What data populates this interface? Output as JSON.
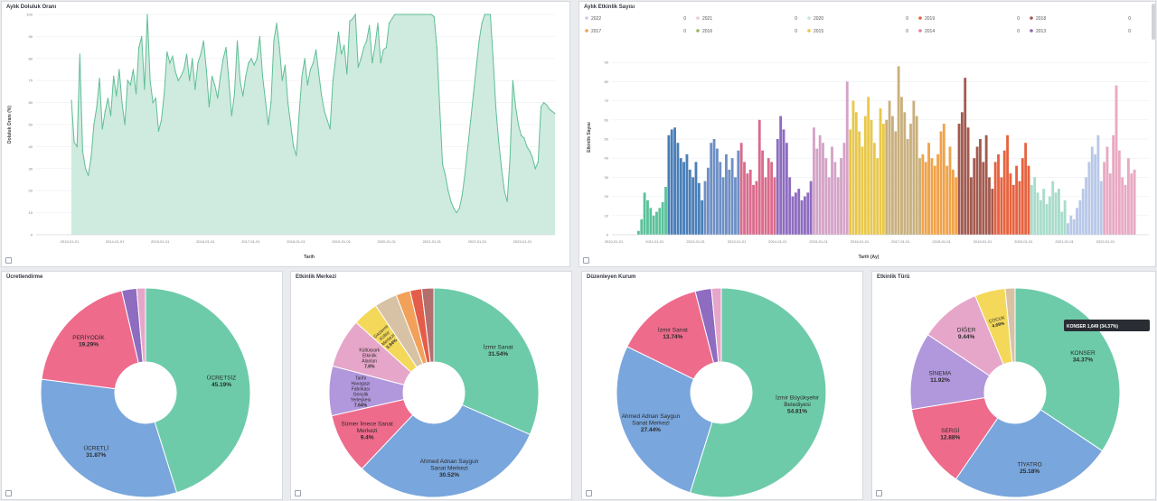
{
  "panels": {
    "occupancy": {
      "title": "Aylık Doluluk Oranı"
    },
    "events": {
      "title": "Aylık Etkinlik Sayısı"
    },
    "pricing": {
      "title": "Ücretlendirme"
    },
    "center": {
      "title": "Etkinlik Merkezi"
    },
    "organizer": {
      "title": "Düzenleyen Kurum"
    },
    "type": {
      "title": "Etkinlik Türü"
    }
  },
  "chart_data": [
    {
      "type": "area",
      "title": "Aylık Doluluk Oranı",
      "xlabel": "Tarih",
      "ylabel": "Doluluk Oranı (%)",
      "ylim": [
        0,
        100
      ],
      "yticks": [
        0,
        10,
        20,
        30,
        40,
        50,
        60,
        70,
        80,
        90,
        100
      ],
      "x_ticks": [
        "2013-01-01",
        "2014-01-01",
        "2015-01-01",
        "2016-01-01",
        "2017-01-01",
        "2018-01-01",
        "2019-01-01",
        "2020-01-01",
        "2021-01-01",
        "2022-01-01",
        "2023-01-01"
      ],
      "values": [
        61,
        42,
        40,
        82,
        38,
        30,
        27,
        35,
        50,
        58,
        71,
        48,
        56,
        62,
        54,
        72,
        63,
        75,
        60,
        50,
        70,
        68,
        75,
        64,
        85,
        90,
        66,
        100,
        70,
        60,
        62,
        47,
        52,
        64,
        83,
        78,
        81,
        74,
        70,
        72,
        75,
        82,
        70,
        80,
        66,
        78,
        82,
        88,
        75,
        58,
        72,
        68,
        62,
        72,
        80,
        85,
        70,
        54,
        64,
        88,
        70,
        63,
        72,
        78,
        80,
        77,
        80,
        90,
        72,
        61,
        50,
        60,
        88,
        96,
        85,
        70,
        77,
        60,
        50,
        40,
        36,
        55,
        72,
        80,
        68,
        75,
        78,
        84,
        73,
        63,
        56,
        52,
        48,
        70,
        80,
        92,
        82,
        86,
        73,
        97,
        98,
        100,
        76,
        80,
        85,
        88,
        95,
        78,
        86,
        96,
        78,
        84,
        85,
        96,
        98,
        100,
        100,
        100,
        100,
        100,
        100,
        100,
        100,
        100,
        100,
        100,
        100,
        100,
        100,
        99,
        85,
        58,
        32,
        27,
        20,
        15,
        12,
        10,
        12,
        18,
        28,
        40,
        52,
        64,
        76,
        88,
        96,
        100,
        100,
        100,
        80,
        57,
        42,
        30,
        20,
        15,
        35,
        70,
        58,
        50,
        45,
        44,
        40,
        38,
        35,
        30,
        33,
        58,
        60,
        59,
        57,
        56,
        55
      ]
    },
    {
      "type": "bar",
      "title": "Aylık Etkinlik Sayısı",
      "xlabel": "Tarih (Ay)",
      "ylabel": "Etkinlik Sayısı",
      "ylim": [
        0,
        100
      ],
      "yticks": [
        0,
        10,
        20,
        30,
        40,
        50,
        60,
        70,
        80,
        90
      ],
      "x_ticks": [
        "2010-01-01",
        "2011-01-01",
        "2012-01-01",
        "2013-01-01",
        "2014-01-01",
        "2015-01-01",
        "2016-01-01",
        "2017-01-01",
        "2018-01-01",
        "2019-01-01",
        "2020-01-01",
        "2021-01-01",
        "2022-01-01"
      ],
      "legend": [
        {
          "label": "2022",
          "value": "0",
          "color": "#d9c3e8"
        },
        {
          "label": "2021",
          "value": "0",
          "color": "#e8c8d8"
        },
        {
          "label": "2020",
          "value": "0",
          "color": "#c9e4d6"
        },
        {
          "label": "2019",
          "value": "0",
          "color": "#e6623e"
        },
        {
          "label": "2018",
          "value": "0",
          "color": "#a35a4f"
        },
        {
          "label": "2017",
          "value": "0",
          "color": "#f0a34a"
        },
        {
          "label": "2016",
          "value": "0",
          "color": "#95b85f"
        },
        {
          "label": "2015",
          "value": "0",
          "color": "#e8c84a"
        },
        {
          "label": "2014",
          "value": "0",
          "color": "#e87c9b"
        },
        {
          "label": "2013",
          "value": "0",
          "color": "#8d6bb8"
        }
      ],
      "groups": [
        {
          "color": "#5cc29b",
          "values": [
            2,
            8,
            22,
            18,
            14,
            10,
            12,
            14,
            17,
            25
          ]
        },
        {
          "color": "#4a7fb8",
          "values": [
            52,
            55,
            56,
            48,
            40,
            38,
            42,
            34,
            30,
            38,
            27,
            18
          ]
        },
        {
          "color": "#6e8fc5",
          "values": [
            28,
            35,
            48,
            50,
            45,
            38,
            30,
            42,
            34,
            40,
            30,
            44
          ]
        },
        {
          "color": "#d96b8c",
          "values": [
            48,
            38,
            32,
            34,
            26,
            28,
            60,
            44,
            30,
            40,
            38,
            30
          ]
        },
        {
          "color": "#8e6cc0",
          "values": [
            50,
            62,
            55,
            48,
            30,
            20,
            22,
            24,
            18,
            20,
            22,
            28
          ]
        },
        {
          "color": "#d4a3c7",
          "values": [
            56,
            45,
            52,
            48,
            40,
            30,
            46,
            38,
            30,
            40,
            48,
            80
          ]
        },
        {
          "color": "#e8c84a",
          "values": [
            55,
            70,
            64,
            54,
            46,
            62,
            72,
            60,
            48,
            40,
            66,
            58
          ]
        },
        {
          "color": "#c9b07d",
          "values": [
            60,
            70,
            62,
            54,
            88,
            72,
            64,
            50,
            58,
            70,
            62,
            40
          ]
        },
        {
          "color": "#f0a34a",
          "values": [
            42,
            38,
            48,
            40,
            36,
            42,
            54,
            58,
            36,
            46,
            34,
            30
          ]
        },
        {
          "color": "#a35a4f",
          "values": [
            58,
            64,
            82,
            56,
            30,
            40,
            46,
            50,
            38,
            52,
            30,
            24
          ]
        },
        {
          "color": "#e6623e",
          "values": [
            38,
            42,
            30,
            44,
            52,
            32,
            26,
            36,
            28,
            40,
            48,
            36
          ]
        },
        {
          "color": "#a8dccb",
          "values": [
            26,
            30,
            22,
            18,
            24,
            16,
            20,
            28,
            22,
            24,
            12,
            18
          ]
        },
        {
          "color": "#b8c8e8",
          "values": [
            6,
            10,
            8,
            14,
            18,
            24,
            30,
            38,
            46,
            42,
            52,
            28
          ]
        },
        {
          "color": "#e8a9c2",
          "values": [
            38,
            46,
            32,
            52,
            78,
            44,
            30,
            26,
            40,
            32,
            34
          ]
        }
      ]
    },
    {
      "type": "pie",
      "title": "Ücretlendirme",
      "slices": [
        {
          "label": "ÜCRETSİZ",
          "value": 45.19,
          "text": "45.19%",
          "color": "#6dcbaa"
        },
        {
          "label": "ÜCRETLİ",
          "value": 31.87,
          "text": "31.87%",
          "color": "#79a6dc"
        },
        {
          "label": "PERİYODİK",
          "value": 19.29,
          "text": "19.29%",
          "color": "#ee6b8c"
        },
        {
          "label": "",
          "value": 2.3,
          "text": "",
          "color": "#8e6cc0"
        },
        {
          "label": "",
          "value": 1.35,
          "text": "",
          "color": "#e6a6c9"
        }
      ]
    },
    {
      "type": "pie",
      "title": "Etkinlik Merkezi",
      "slices": [
        {
          "label": "İzmir Sanat",
          "value": 31.54,
          "text": "31.54%",
          "color": "#6dcbaa"
        },
        {
          "label": "Ahmed Adnan Saygun Sanat Merkezi",
          "value": 30.52,
          "text": "30.52%",
          "color": "#79a6dc"
        },
        {
          "label": "Sümer İmece Sanat Merkezi",
          "value": 9.4,
          "text": "9.4%",
          "color": "#ee6b8c"
        },
        {
          "label": "Tarihi Havagazı Fabrikası Gençlik Yerleşkesi",
          "value": 7.64,
          "text": "7.64%",
          "color": "#b197dc"
        },
        {
          "label": "Kültürpark Etkinlik Alanları",
          "value": 7.6,
          "text": "7.6%",
          "color": "#e6a6c9"
        },
        {
          "label": "Gaziemir Kültür Merkezi",
          "value": 3.94,
          "text": "3.94%",
          "color": "#f3d85a"
        },
        {
          "label": "",
          "value": 3.5,
          "text": "",
          "color": "#d7c2a6"
        },
        {
          "label": "",
          "value": 2.2,
          "text": "",
          "color": "#f2a15a"
        },
        {
          "label": "",
          "value": 1.8,
          "text": "",
          "color": "#e35d4a"
        },
        {
          "label": "",
          "value": 1.86,
          "text": "",
          "color": "#b46e6e"
        }
      ]
    },
    {
      "type": "pie",
      "title": "Düzenleyen Kurum",
      "slices": [
        {
          "label": "İzmir Büyükşehir Belediyesi",
          "value": 54.81,
          "text": "54.81%",
          "color": "#6dcbaa"
        },
        {
          "label": "Ahmed Adnan Saygun Sanat Merkezi",
          "value": 27.44,
          "text": "27.44%",
          "color": "#79a6dc"
        },
        {
          "label": "İzmir Sanat",
          "value": 13.74,
          "text": "13.74%",
          "color": "#ee6b8c"
        },
        {
          "label": "",
          "value": 2.5,
          "text": "",
          "color": "#8e6cc0"
        },
        {
          "label": "",
          "value": 1.51,
          "text": "",
          "color": "#e6a6c9"
        }
      ]
    },
    {
      "type": "pie",
      "title": "Etkinlik Türü",
      "slices": [
        {
          "label": "KONSER",
          "value": 34.37,
          "text": "34.37%",
          "color": "#6dcbaa"
        },
        {
          "label": "TİYATRO",
          "value": 25.18,
          "text": "25.18%",
          "color": "#79a6dc"
        },
        {
          "label": "SERGİ",
          "value": 12.88,
          "text": "12.88%",
          "color": "#ee6b8c"
        },
        {
          "label": "SİNEMA",
          "value": 11.92,
          "text": "11.92%",
          "color": "#b197dc"
        },
        {
          "label": "DİĞER",
          "value": 9.44,
          "text": "9.44%",
          "color": "#e6a6c9"
        },
        {
          "label": "ÇOCUK",
          "value": 4.69,
          "text": "4.69%",
          "color": "#f3d85a"
        },
        {
          "label": "",
          "value": 1.52,
          "text": "",
          "color": "#d7c2a6"
        }
      ],
      "tooltip": "KONSER  1,649 (34.37%)"
    }
  ]
}
